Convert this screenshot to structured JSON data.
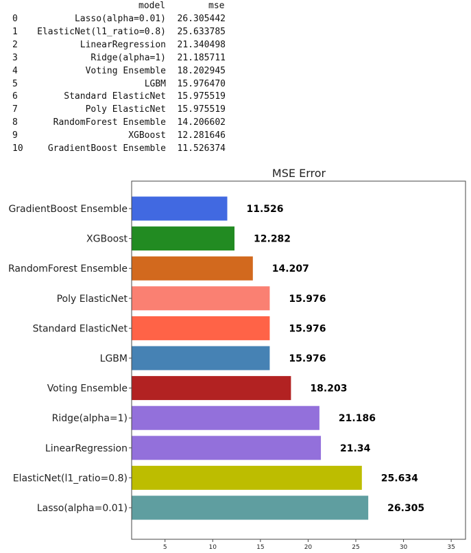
{
  "table": {
    "columns": [
      "model",
      "mse"
    ],
    "rows": [
      {
        "index": "0",
        "model": "Lasso(alpha=0.01)",
        "mse": "26.305442"
      },
      {
        "index": "1",
        "model": "ElasticNet(l1_ratio=0.8)",
        "mse": "25.633785"
      },
      {
        "index": "2",
        "model": "LinearRegression",
        "mse": "21.340498"
      },
      {
        "index": "3",
        "model": "Ridge(alpha=1)",
        "mse": "21.185711"
      },
      {
        "index": "4",
        "model": "Voting Ensemble",
        "mse": "18.202945"
      },
      {
        "index": "5",
        "model": "LGBM",
        "mse": "15.976470"
      },
      {
        "index": "6",
        "model": "Standard ElasticNet",
        "mse": "15.975519"
      },
      {
        "index": "7",
        "model": "Poly ElasticNet",
        "mse": "15.975519"
      },
      {
        "index": "8",
        "model": "RandomForest Ensemble",
        "mse": "14.206602"
      },
      {
        "index": "9",
        "model": "XGBoost",
        "mse": "12.281646"
      },
      {
        "index": "10",
        "model": "GradientBoost Ensemble",
        "mse": "11.526374"
      }
    ]
  },
  "chart_data": {
    "type": "bar",
    "orientation": "horizontal",
    "title": "MSE Error",
    "xlabel": "",
    "ylabel": "",
    "xlim": [
      1.5,
      36.5
    ],
    "xticks": [
      5,
      10,
      15,
      20,
      25,
      30,
      35
    ],
    "grid": false,
    "categories": [
      "GradientBoost Ensemble",
      "XGBoost",
      "RandomForest Ensemble",
      "Poly ElasticNet",
      "Standard ElasticNet",
      "LGBM",
      "Voting Ensemble",
      "Ridge(alpha=1)",
      "LinearRegression",
      "ElasticNet(l1_ratio=0.8)",
      "Lasso(alpha=0.01)"
    ],
    "values": [
      11.526,
      12.282,
      14.207,
      15.976,
      15.976,
      15.976,
      18.203,
      21.186,
      21.34,
      25.634,
      26.305
    ],
    "data_labels": [
      "11.526",
      "12.282",
      "14.207",
      "15.976",
      "15.976",
      "15.976",
      "18.203",
      "21.186",
      "21.34",
      "25.634",
      "26.305"
    ],
    "colors": [
      "#4169e1",
      "#228b22",
      "#d2691e",
      "#fa8072",
      "#ff6347",
      "#4682b4",
      "#b22222",
      "#9370db",
      "#9370db",
      "#bdbd00",
      "#5f9ea0"
    ]
  }
}
